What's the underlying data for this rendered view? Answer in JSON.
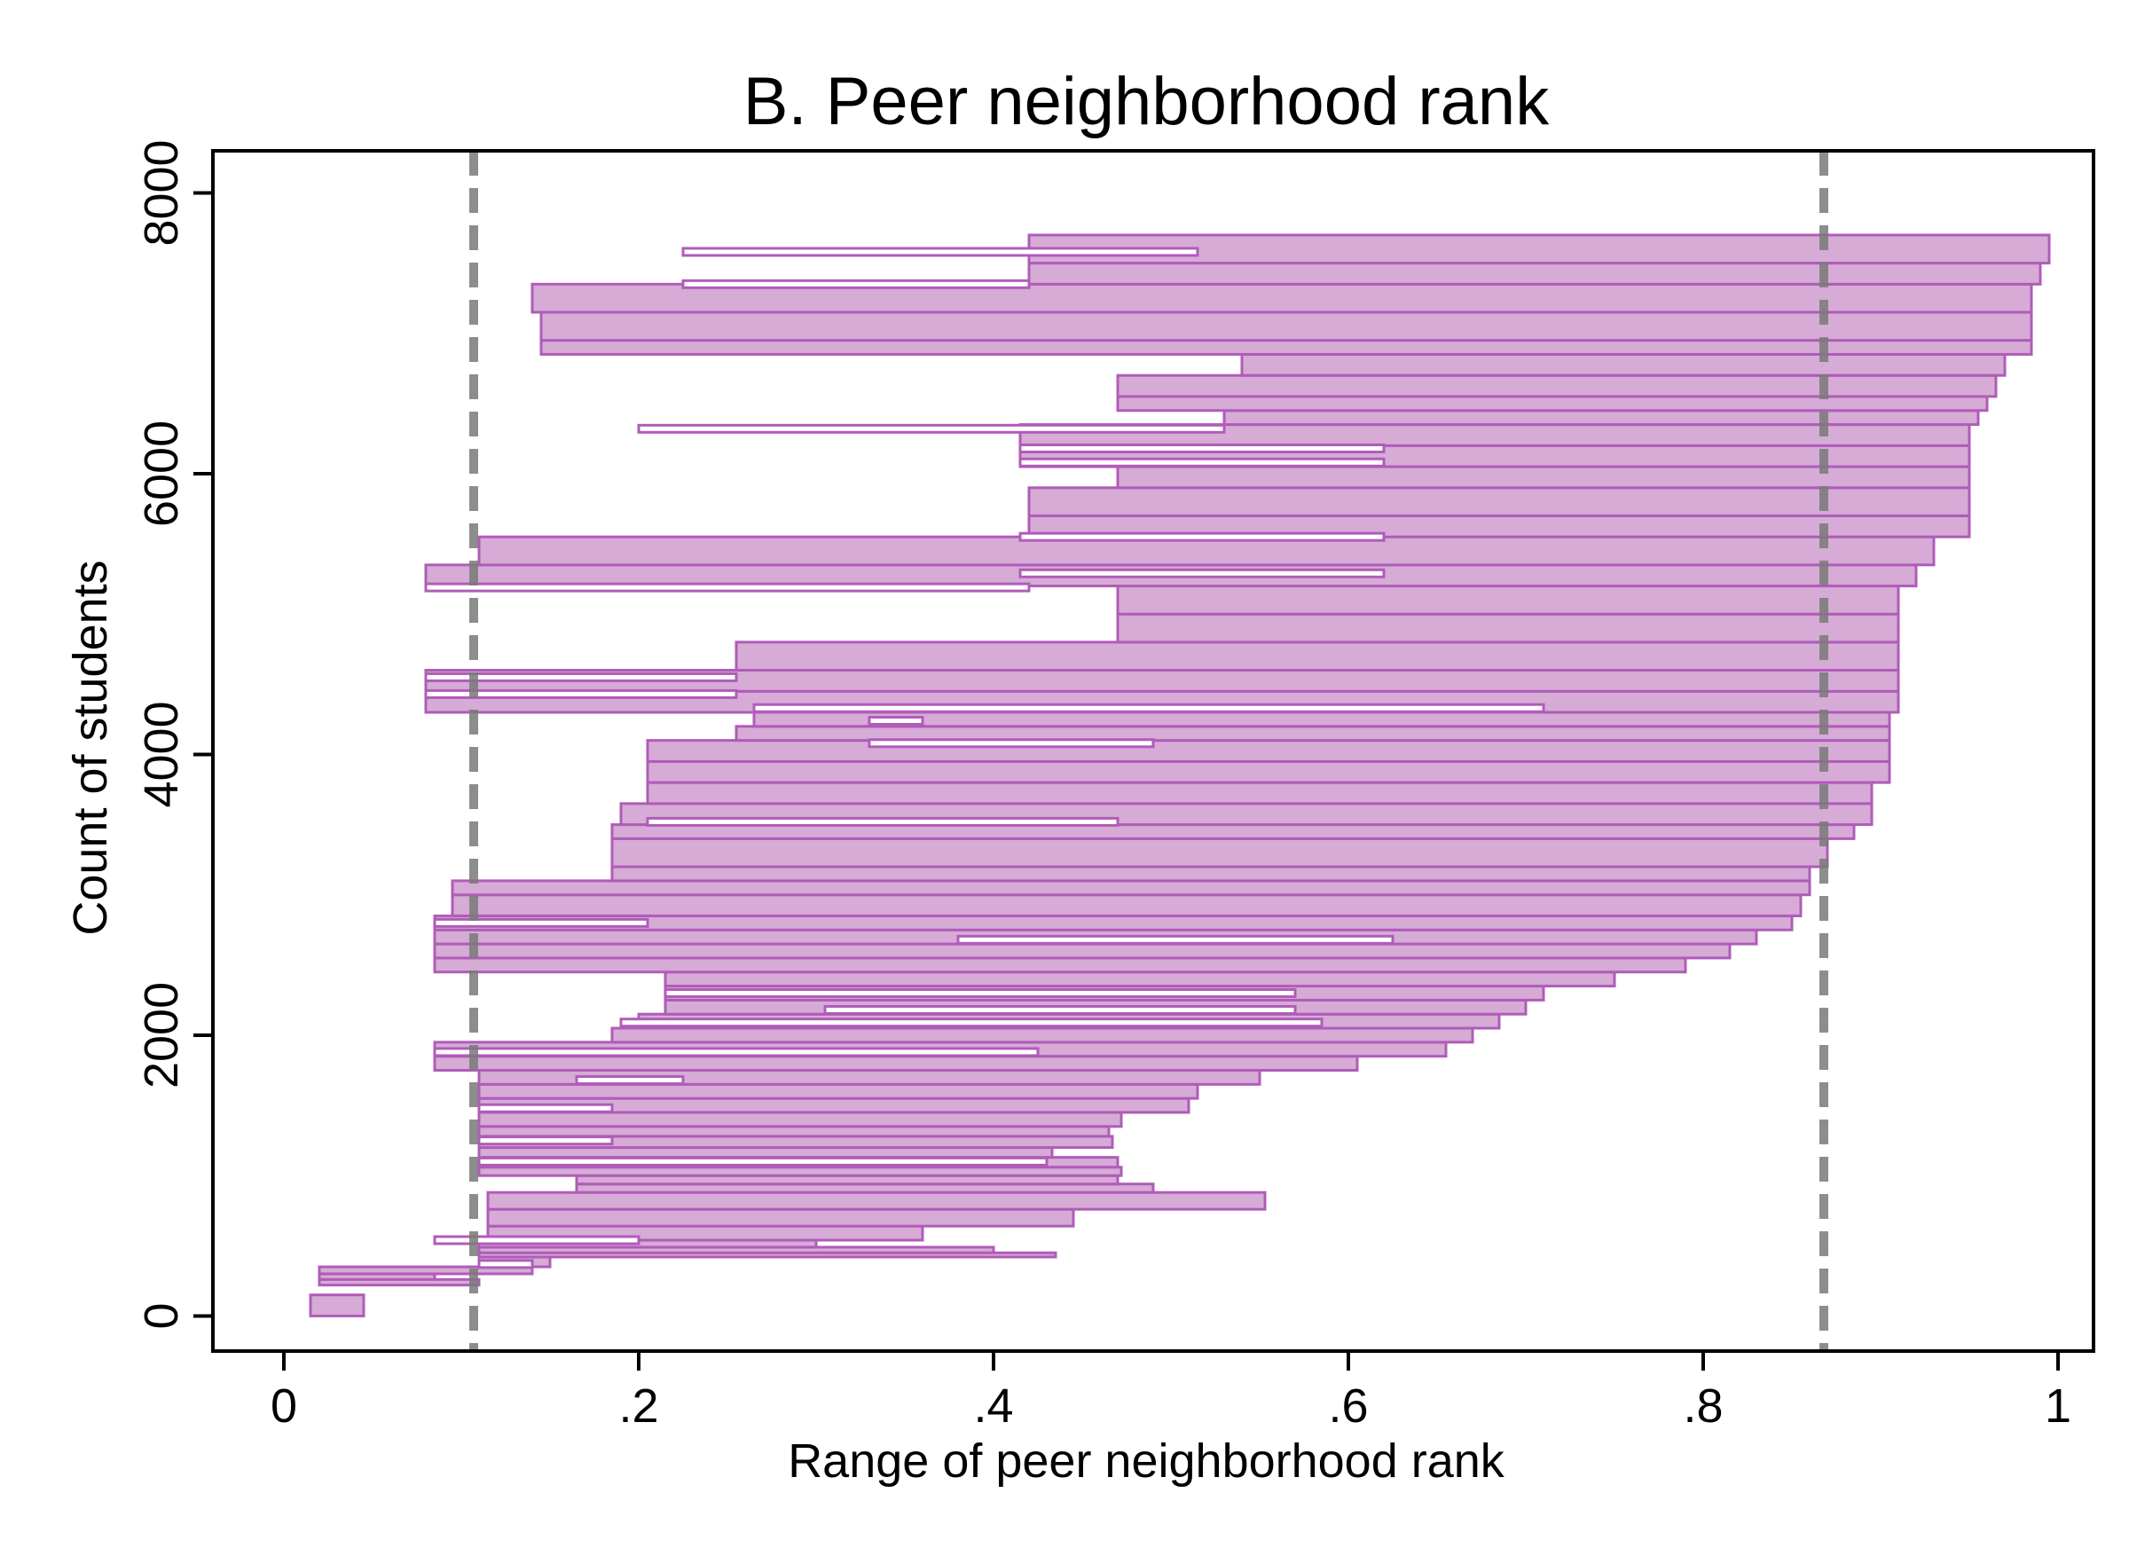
{
  "chart_data": {
    "type": "area",
    "title": "B. Peer neighborhood rank",
    "xlabel": "Range of peer neighborhood rank",
    "ylabel": "Count of students",
    "xlim": [
      -0.04,
      1.02
    ],
    "ylim": [
      -250,
      8300
    ],
    "x_ticks": [
      {
        "value": 0,
        "label": "0"
      },
      {
        "value": 0.2,
        "label": ".2"
      },
      {
        "value": 0.4,
        "label": ".4"
      },
      {
        "value": 0.6,
        "label": ".6"
      },
      {
        "value": 0.8,
        "label": ".8"
      },
      {
        "value": 1,
        "label": "1"
      }
    ],
    "y_ticks": [
      {
        "value": 0,
        "label": "0"
      },
      {
        "value": 2000,
        "label": "2000"
      },
      {
        "value": 4000,
        "label": "4000"
      },
      {
        "value": 6000,
        "label": "6000"
      },
      {
        "value": 8000,
        "label": "8000"
      }
    ],
    "vlines": [
      0.107,
      0.868
    ],
    "grid": false,
    "colors": {
      "fill": "#d6abd6",
      "stroke": "#b05cb8",
      "vline": "#7a7a7a",
      "axis": "#000000"
    },
    "ranges": [
      [
        0,
        150,
        0.015,
        0.045
      ],
      [
        220,
        260,
        0.02,
        0.11
      ],
      [
        260,
        300,
        0.02,
        0.085
      ],
      [
        300,
        350,
        0.02,
        0.14
      ],
      [
        350,
        420,
        0.11,
        0.15
      ],
      [
        420,
        450,
        0.11,
        0.435
      ],
      [
        450,
        490,
        0.11,
        0.4
      ],
      [
        490,
        540,
        0.11,
        0.3
      ],
      [
        540,
        640,
        0.115,
        0.36
      ],
      [
        640,
        760,
        0.115,
        0.445
      ],
      [
        760,
        880,
        0.115,
        0.553
      ],
      [
        880,
        940,
        0.165,
        0.49
      ],
      [
        940,
        1000,
        0.165,
        0.47
      ],
      [
        1000,
        1060,
        0.11,
        0.472
      ],
      [
        1060,
        1130,
        0.11,
        0.47
      ],
      [
        1130,
        1200,
        0.11,
        0.433
      ],
      [
        1200,
        1280,
        0.11,
        0.467
      ],
      [
        1280,
        1350,
        0.11,
        0.465
      ],
      [
        1350,
        1450,
        0.11,
        0.472
      ],
      [
        1450,
        1550,
        0.11,
        0.51
      ],
      [
        1550,
        1650,
        0.11,
        0.515
      ],
      [
        1650,
        1750,
        0.11,
        0.55
      ],
      [
        1750,
        1850,
        0.085,
        0.605
      ],
      [
        1850,
        1950,
        0.085,
        0.655
      ],
      [
        1950,
        2050,
        0.185,
        0.67
      ],
      [
        2050,
        2150,
        0.2,
        0.685
      ],
      [
        2150,
        2250,
        0.215,
        0.7
      ],
      [
        2250,
        2350,
        0.215,
        0.71
      ],
      [
        2350,
        2450,
        0.215,
        0.75
      ],
      [
        2450,
        2550,
        0.085,
        0.79
      ],
      [
        2550,
        2650,
        0.085,
        0.815
      ],
      [
        2650,
        2750,
        0.085,
        0.83
      ],
      [
        2750,
        2850,
        0.085,
        0.85
      ],
      [
        2850,
        3000,
        0.095,
        0.855
      ],
      [
        3000,
        3100,
        0.095,
        0.86
      ],
      [
        3100,
        3200,
        0.185,
        0.86
      ],
      [
        3200,
        3400,
        0.185,
        0.87
      ],
      [
        3400,
        3500,
        0.185,
        0.885
      ],
      [
        3500,
        3650,
        0.19,
        0.895
      ],
      [
        3650,
        3800,
        0.205,
        0.895
      ],
      [
        3800,
        3950,
        0.205,
        0.905
      ],
      [
        3950,
        4100,
        0.205,
        0.905
      ],
      [
        4100,
        4200,
        0.255,
        0.905
      ],
      [
        4200,
        4300,
        0.265,
        0.905
      ],
      [
        4300,
        4450,
        0.08,
        0.91
      ],
      [
        4450,
        4600,
        0.08,
        0.91
      ],
      [
        4600,
        4800,
        0.255,
        0.91
      ],
      [
        4800,
        5000,
        0.47,
        0.91
      ],
      [
        5000,
        5200,
        0.47,
        0.91
      ],
      [
        5200,
        5350,
        0.08,
        0.92
      ],
      [
        5350,
        5550,
        0.11,
        0.93
      ],
      [
        5550,
        5700,
        0.42,
        0.95
      ],
      [
        5700,
        5900,
        0.42,
        0.95
      ],
      [
        5900,
        6050,
        0.47,
        0.95
      ],
      [
        6050,
        6200,
        0.415,
        0.95
      ],
      [
        6200,
        6350,
        0.415,
        0.95
      ],
      [
        6350,
        6450,
        0.53,
        0.955
      ],
      [
        6450,
        6550,
        0.47,
        0.96
      ],
      [
        6550,
        6700,
        0.47,
        0.965
      ],
      [
        6700,
        6850,
        0.54,
        0.97
      ],
      [
        6850,
        6950,
        0.145,
        0.985
      ],
      [
        6950,
        7150,
        0.145,
        0.985
      ],
      [
        7150,
        7350,
        0.14,
        0.985
      ],
      [
        7350,
        7500,
        0.42,
        0.99
      ],
      [
        7500,
        7700,
        0.42,
        0.995
      ]
    ],
    "gap_lines": [
      [
        7580,
        0.225,
        0.515
      ],
      [
        7350,
        0.225,
        0.42
      ],
      [
        6320,
        0.2,
        0.53
      ],
      [
        6180,
        0.415,
        0.62
      ],
      [
        6080,
        0.415,
        0.62
      ],
      [
        5550,
        0.415,
        0.62
      ],
      [
        5290,
        0.415,
        0.62
      ],
      [
        5190,
        0.08,
        0.42
      ],
      [
        4550,
        0.08,
        0.255
      ],
      [
        4430,
        0.08,
        0.255
      ],
      [
        4330,
        0.265,
        0.71
      ],
      [
        4240,
        0.33,
        0.36
      ],
      [
        4080,
        0.33,
        0.49
      ],
      [
        3520,
        0.205,
        0.47
      ],
      [
        2800,
        0.085,
        0.205
      ],
      [
        2680,
        0.38,
        0.625
      ],
      [
        2300,
        0.215,
        0.57
      ],
      [
        2180,
        0.305,
        0.57
      ],
      [
        2090,
        0.19,
        0.585
      ],
      [
        1880,
        0.085,
        0.425
      ],
      [
        1680,
        0.165,
        0.225
      ],
      [
        1480,
        0.11,
        0.185
      ],
      [
        1250,
        0.11,
        0.185
      ],
      [
        1100,
        0.11,
        0.43
      ],
      [
        540,
        0.085,
        0.2
      ],
      [
        370,
        0.11,
        0.14
      ]
    ]
  }
}
